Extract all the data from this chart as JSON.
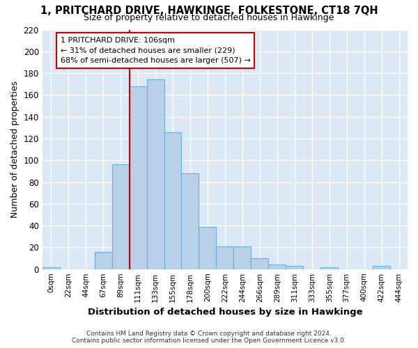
{
  "title": "1, PRITCHARD DRIVE, HAWKINGE, FOLKESTONE, CT18 7QH",
  "subtitle": "Size of property relative to detached houses in Hawkinge",
  "xlabel": "Distribution of detached houses by size in Hawkinge",
  "ylabel": "Number of detached properties",
  "bin_labels": [
    "0sqm",
    "22sqm",
    "44sqm",
    "67sqm",
    "89sqm",
    "111sqm",
    "133sqm",
    "155sqm",
    "178sqm",
    "200sqm",
    "222sqm",
    "244sqm",
    "266sqm",
    "289sqm",
    "311sqm",
    "333sqm",
    "355sqm",
    "377sqm",
    "400sqm",
    "422sqm",
    "444sqm"
  ],
  "bar_heights": [
    2,
    0,
    0,
    16,
    96,
    168,
    174,
    126,
    88,
    39,
    21,
    21,
    10,
    4,
    3,
    0,
    2,
    0,
    0,
    3,
    0
  ],
  "bar_color": "#b8d0e8",
  "bar_edge_color": "#6baed6",
  "vline_x_index": 5,
  "annotation_text": "1 PRITCHARD DRIVE: 106sqm\n← 31% of detached houses are smaller (229)\n68% of semi-detached houses are larger (507) →",
  "annotation_box_color": "#ffffff",
  "annotation_box_edge": "#cc0000",
  "vline_color": "#cc0000",
  "footer_text": "Contains HM Land Registry data © Crown copyright and database right 2024.\nContains public sector information licensed under the Open Government Licence v3.0.",
  "ylim": [
    0,
    220
  ],
  "yticks": [
    0,
    20,
    40,
    60,
    80,
    100,
    120,
    140,
    160,
    180,
    200,
    220
  ],
  "background_color": "#ffffff",
  "plot_bg_color": "#dce9f5"
}
